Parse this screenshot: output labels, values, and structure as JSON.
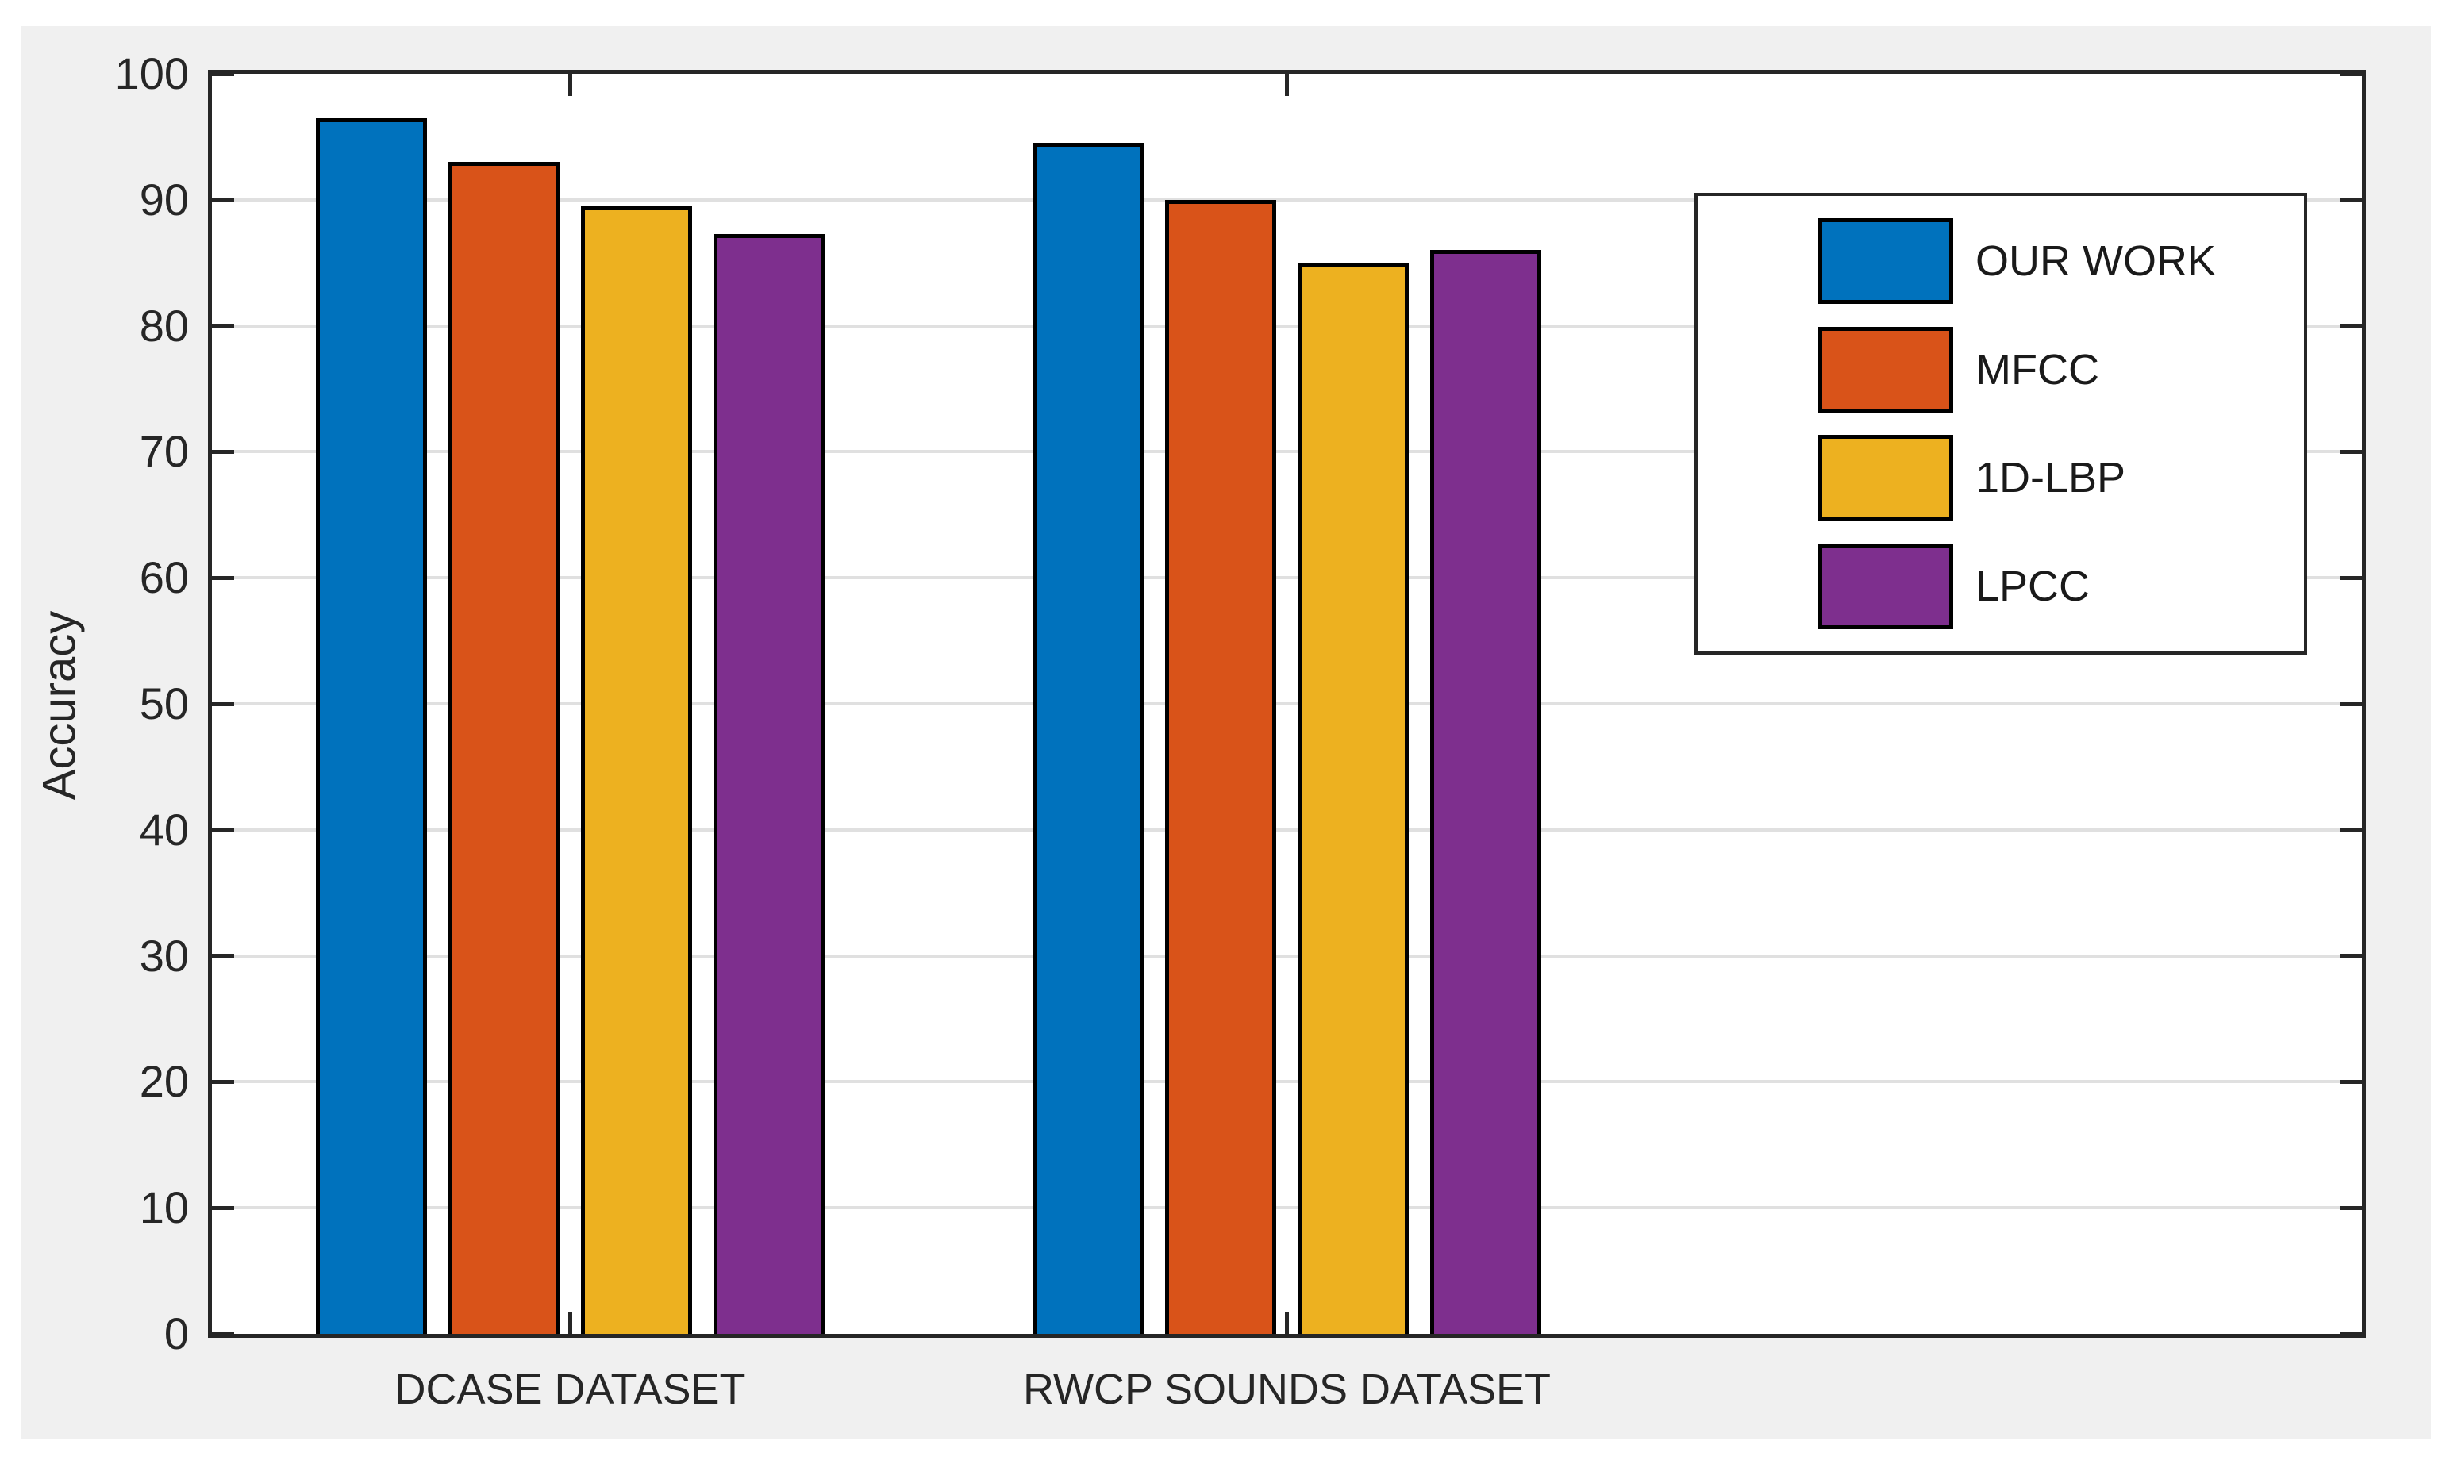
{
  "figure": {
    "background_color": "#f0f0f0",
    "plot_background_color": "#ffffff",
    "axis_color": "#262626",
    "grid_color": "#e0e0e0",
    "text_color": "#262626"
  },
  "chart_data": {
    "type": "bar",
    "categories": [
      "DCASE DATASET",
      "RWCP SOUNDS DATASET"
    ],
    "series": [
      {
        "name": "OUR WORK",
        "color": "#0072BD",
        "values": [
          96.5,
          94.5
        ]
      },
      {
        "name": "MFCC",
        "color": "#D95319",
        "values": [
          93.0,
          90.0
        ]
      },
      {
        "name": "1D-LBP",
        "color": "#EDB120",
        "values": [
          89.5,
          85.0
        ]
      },
      {
        "name": "LPCC",
        "color": "#7E2F8E",
        "values": [
          87.3,
          86.0
        ]
      }
    ],
    "title": "",
    "xlabel": "",
    "ylabel": "Accuracy",
    "ylim": [
      0,
      100
    ],
    "yticks": [
      0,
      10,
      20,
      30,
      40,
      50,
      60,
      70,
      80,
      90,
      100
    ],
    "xlim_units": [
      0.5,
      3.5
    ],
    "grid": "horizontal",
    "legend_position": "top-right",
    "bar_edge_color": "#000000"
  }
}
